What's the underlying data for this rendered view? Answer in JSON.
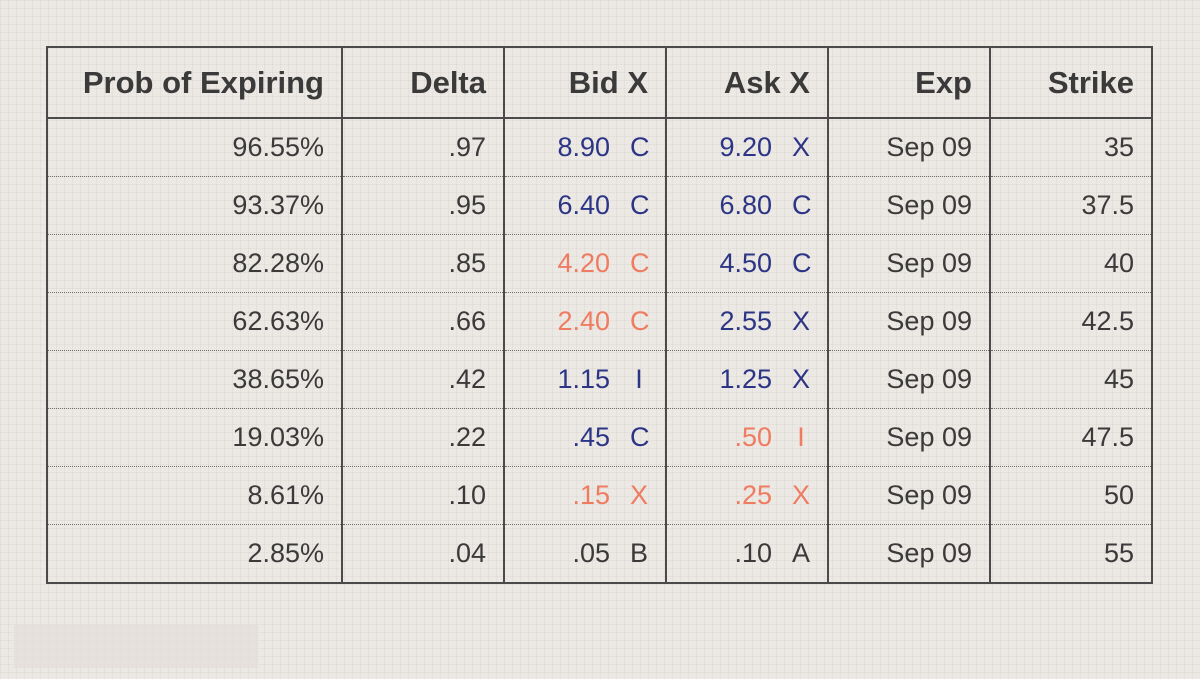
{
  "columns": [
    "Prob of Expiring",
    "Delta",
    "Bid X",
    "Ask X",
    "Exp",
    "Strike"
  ],
  "colors": {
    "blue": "#2c3585",
    "orange": "#ef7b60",
    "gray": "#3a3a3a"
  },
  "rows": [
    {
      "prob": "96.55%",
      "delta": ".97",
      "bid": ".90",
      "bid_full": "8.90",
      "bid_exch": "C",
      "bid_color": "blue",
      "ask_full": "9.20",
      "ask_exch": "X",
      "ask_color": "blue",
      "exp": "Sep 09",
      "strike": "35"
    },
    {
      "prob": "93.37%",
      "delta": ".95",
      "bid_full": "6.40",
      "bid_exch": "C",
      "bid_color": "blue",
      "ask_full": "6.80",
      "ask_exch": "C",
      "ask_color": "blue",
      "exp": "Sep 09",
      "strike": "37.5"
    },
    {
      "prob": "82.28%",
      "delta": ".85",
      "bid_full": "4.20",
      "bid_exch": "C",
      "bid_color": "orange",
      "ask_full": "4.50",
      "ask_exch": "C",
      "ask_color": "blue",
      "exp": "Sep 09",
      "strike": "40"
    },
    {
      "prob": "62.63%",
      "delta": ".66",
      "bid_full": "2.40",
      "bid_exch": "C",
      "bid_color": "orange",
      "ask_full": "2.55",
      "ask_exch": "X",
      "ask_color": "blue",
      "exp": "Sep 09",
      "strike": "42.5"
    },
    {
      "prob": "38.65%",
      "delta": ".42",
      "bid_full": "1.15",
      "bid_exch": "I",
      "bid_color": "blue",
      "ask_full": "1.25",
      "ask_exch": "X",
      "ask_color": "blue",
      "exp": "Sep 09",
      "strike": "45"
    },
    {
      "prob": "19.03%",
      "delta": ".22",
      "bid_full": ".45",
      "bid_exch": "C",
      "bid_color": "blue",
      "ask_full": ".50",
      "ask_exch": "I",
      "ask_color": "orange",
      "exp": "Sep 09",
      "strike": "47.5"
    },
    {
      "prob": "8.61%",
      "delta": ".10",
      "bid_full": ".15",
      "bid_exch": "X",
      "bid_color": "orange",
      "ask_full": ".25",
      "ask_exch": "X",
      "ask_color": "orange",
      "exp": "Sep 09",
      "strike": "50"
    },
    {
      "prob": "2.85%",
      "delta": ".04",
      "bid_full": ".05",
      "bid_exch": "B",
      "bid_color": "gray",
      "ask_full": ".10",
      "ask_exch": "A",
      "ask_color": "gray",
      "exp": "Sep 09",
      "strike": "55"
    }
  ]
}
